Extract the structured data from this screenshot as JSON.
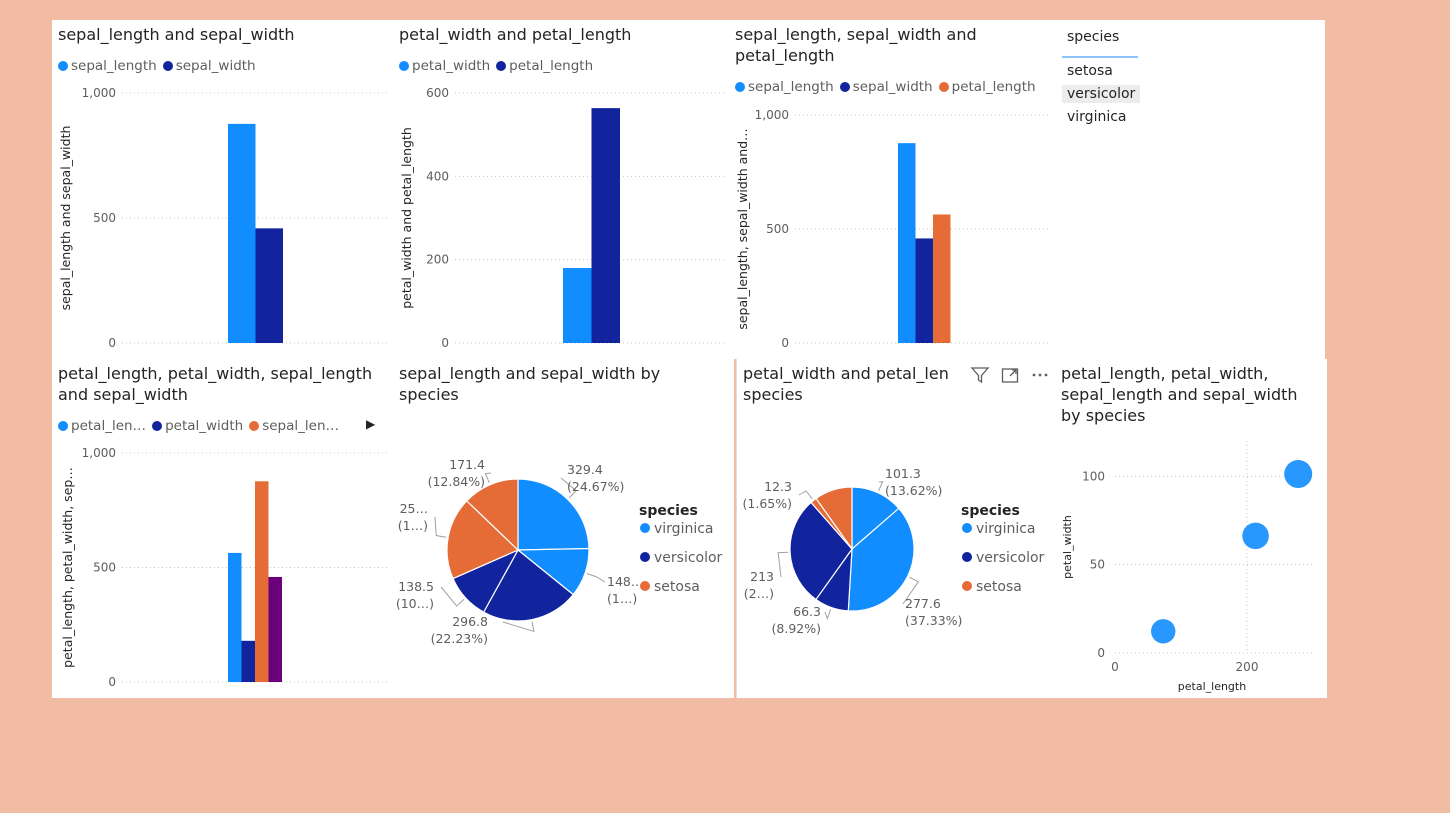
{
  "colors": {
    "blue_light": "#118dff",
    "blue_dark": "#12239e",
    "orange": "#e66c37",
    "purple": "#6b007b",
    "bubble": "#118dff",
    "background": "#f2bba4"
  },
  "slicer": {
    "title": "species",
    "items": [
      "setosa",
      "versicolor",
      "virginica"
    ],
    "selected_index": 1
  },
  "header_icons": [
    "filter-icon",
    "focus-mode-icon",
    "more-options-icon"
  ],
  "chart_data": [
    {
      "id": "c1",
      "type": "bar",
      "title": "sepal_length and sepal_width",
      "ylabel": "sepal_length and sepal_width",
      "ylim": [
        0,
        1000
      ],
      "yticks": [
        0,
        500,
        1000
      ],
      "ytick_labels": [
        "0",
        "500",
        "1,000"
      ],
      "grid": true,
      "legend_position": "top-left",
      "series": [
        {
          "name": "sepal_length",
          "values": [
            876.5
          ],
          "color": "#118dff"
        },
        {
          "name": "sepal_width",
          "values": [
            458.6
          ],
          "color": "#12239e"
        }
      ]
    },
    {
      "id": "c2",
      "type": "bar",
      "title": "petal_width and petal_length",
      "ylabel": "petal_width and petal_length",
      "ylim": [
        0,
        600
      ],
      "yticks": [
        0,
        200,
        400,
        600
      ],
      "ytick_labels": [
        "0",
        "200",
        "400",
        "600"
      ],
      "grid": true,
      "legend_position": "top-left",
      "series": [
        {
          "name": "petal_width",
          "values": [
            179.9
          ],
          "color": "#118dff"
        },
        {
          "name": "petal_length",
          "values": [
            563.7
          ],
          "color": "#12239e"
        }
      ]
    },
    {
      "id": "c3",
      "type": "bar",
      "title_lines": [
        "sepal_length, sepal_width and",
        "petal_length"
      ],
      "ylabel": "sepal_length, sepal_width and…",
      "ylim": [
        0,
        1000
      ],
      "yticks": [
        0,
        500,
        1000
      ],
      "ytick_labels": [
        "0",
        "500",
        "1,000"
      ],
      "grid": true,
      "legend_position": "top-left",
      "series": [
        {
          "name": "sepal_length",
          "values": [
            876.5
          ],
          "color": "#118dff"
        },
        {
          "name": "sepal_width",
          "values": [
            458.6
          ],
          "color": "#12239e"
        },
        {
          "name": "petal_length",
          "values": [
            563.7
          ],
          "color": "#e66c37"
        }
      ]
    },
    {
      "id": "c4",
      "type": "bar",
      "title_lines": [
        "petal_length, petal_width, sepal_length",
        "and sepal_width"
      ],
      "ylabel": "petal_length, petal_width, sep…",
      "ylim": [
        0,
        1000
      ],
      "yticks": [
        0,
        500,
        1000
      ],
      "ytick_labels": [
        "0",
        "500",
        "1,000"
      ],
      "grid": true,
      "legend_position": "top-left",
      "legend_labels": [
        "petal_len…",
        "petal_width",
        "sepal_len…"
      ],
      "series": [
        {
          "name": "petal_length",
          "values": [
            563.7
          ],
          "color": "#118dff"
        },
        {
          "name": "petal_width",
          "values": [
            179.9
          ],
          "color": "#12239e"
        },
        {
          "name": "sepal_length",
          "values": [
            876.5
          ],
          "color": "#e66c37"
        },
        {
          "name": "sepal_width",
          "values": [
            458.6
          ],
          "color": "#6b007b"
        }
      ]
    },
    {
      "id": "c5",
      "type": "pie",
      "title_lines": [
        "sepal_length and sepal_width by",
        "species"
      ],
      "legend_title": "species",
      "legend": [
        {
          "name": "virginica",
          "color": "#118dff"
        },
        {
          "name": "versicolor",
          "color": "#12239e"
        },
        {
          "name": "setosa",
          "color": "#e66c37"
        }
      ],
      "slices": [
        {
          "value": 329.4,
          "label": [
            "329.4",
            "(24.67%)"
          ],
          "color": "#118dff"
        },
        {
          "value": 148.7,
          "label": [
            "148…",
            "(1…)"
          ],
          "color": "#118dff"
        },
        {
          "value": 296.8,
          "label": [
            "296.8",
            "(22.23%)"
          ],
          "color": "#12239e"
        },
        {
          "value": 138.5,
          "label": [
            "138.5",
            "(10…)"
          ],
          "color": "#12239e"
        },
        {
          "value": 250.3,
          "label": [
            "25…",
            "(1…)"
          ],
          "color": "#e66c37"
        },
        {
          "value": 171.4,
          "label": [
            "171.4",
            "(12.84%)"
          ],
          "color": "#e66c37"
        }
      ]
    },
    {
      "id": "c6",
      "type": "pie",
      "title_lines": [
        "petal_width and petal_len",
        "species"
      ],
      "legend_title": "species",
      "legend": [
        {
          "name": "virginica",
          "color": "#118dff"
        },
        {
          "name": "versicolor",
          "color": "#12239e"
        },
        {
          "name": "setosa",
          "color": "#e66c37"
        }
      ],
      "slices": [
        {
          "value": 101.3,
          "label": [
            "101.3",
            "(13.62%)"
          ],
          "color": "#118dff"
        },
        {
          "value": 277.6,
          "label": [
            "277.6",
            "(37.33%)"
          ],
          "color": "#118dff"
        },
        {
          "value": 66.3,
          "label": [
            "66.3",
            "(8.92%)"
          ],
          "color": "#12239e"
        },
        {
          "value": 213,
          "label": [
            "213",
            "(2…)"
          ],
          "color": "#12239e"
        },
        {
          "value": 12.3,
          "label": [
            "12.3",
            "(1.65%)"
          ],
          "color": "#e66c37"
        },
        {
          "value": 73.1,
          "label": [],
          "color": "#e66c37"
        }
      ]
    },
    {
      "id": "c7",
      "type": "scatter",
      "title_lines": [
        "petal_length, petal_width,",
        "sepal_length and sepal_width",
        "by species"
      ],
      "xlabel": "petal_length",
      "ylabel": "petal_width",
      "xlim": [
        0,
        300
      ],
      "ylim": [
        0,
        120
      ],
      "xticks": [
        0,
        200
      ],
      "yticks": [
        0,
        50,
        100
      ],
      "grid": true,
      "points": [
        {
          "x": 73.1,
          "y": 12.3,
          "size": 250.3
        },
        {
          "x": 213,
          "y": 66.3,
          "size": 296.8
        },
        {
          "x": 277.6,
          "y": 101.3,
          "size": 329.4
        }
      ]
    }
  ]
}
